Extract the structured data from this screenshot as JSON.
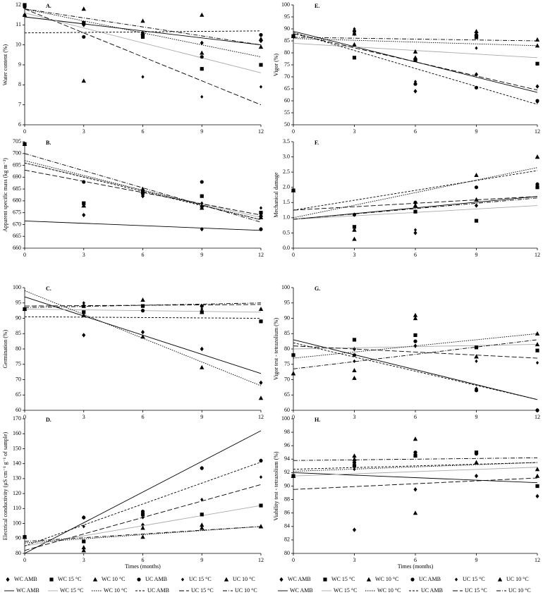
{
  "chart_data": [
    {
      "type": "scatter",
      "title": "A.",
      "ylabel": "Water content (%)",
      "x": [
        0,
        3,
        6,
        9,
        12
      ],
      "xlim": [
        0,
        12
      ],
      "xticks": [
        0,
        3,
        6,
        9,
        12
      ],
      "ylim": [
        6,
        12
      ],
      "yticks": [
        6,
        7,
        8,
        9,
        10,
        11,
        12
      ],
      "color": "#000000",
      "series": [
        {
          "name": "WC AMB",
          "values": [
            11.5,
            11.0,
            10.6,
            10.1,
            10.2
          ],
          "trend": [
            11.4,
            10.0
          ]
        },
        {
          "name": "WC 15 °C",
          "values": [
            12.0,
            11.1,
            10.4,
            8.8,
            9.0
          ],
          "trend": [
            11.6,
            8.6
          ]
        },
        {
          "name": "WC 10 °C",
          "values": [
            11.5,
            11.8,
            11.2,
            11.5,
            9.9
          ],
          "trend": [
            11.8,
            9.4
          ]
        },
        {
          "name": "UC AMB",
          "values": [
            11.9,
            10.4,
            10.5,
            9.4,
            10.5
          ],
          "trend": [
            10.6,
            10.7
          ]
        },
        {
          "name": "UC 15 °C",
          "values": [
            11.9,
            11.0,
            8.4,
            7.4,
            7.9
          ],
          "trend": [
            11.8,
            7.0
          ]
        },
        {
          "name": "UC 10 °C",
          "values": [
            11.5,
            8.2,
            10.6,
            9.6,
            10.3
          ],
          "trend": [
            11.8,
            10.0
          ]
        }
      ]
    },
    {
      "type": "scatter",
      "title": "B.",
      "ylabel": "Apparent specific mass (kg m⁻³)",
      "x": [
        0,
        3,
        6,
        9,
        12
      ],
      "xlim": [
        0,
        12
      ],
      "xticks": [
        0,
        3,
        6,
        9,
        12
      ],
      "ylim": [
        660,
        705
      ],
      "yticks": [
        660,
        665,
        670,
        675,
        680,
        685,
        690,
        695,
        700,
        705
      ],
      "color": "#000000",
      "series": [
        {
          "name": "WC AMB",
          "values": [
            704,
            674,
            682,
            668,
            668
          ],
          "trend": [
            671.5,
            667.5
          ]
        },
        {
          "name": "WC 15 °C",
          "values": [
            704,
            679,
            684,
            682,
            675
          ],
          "trend": [
            696,
            673
          ]
        },
        {
          "name": "WC 10 °C",
          "values": [
            704,
            678,
            685,
            678,
            674
          ],
          "trend": [
            697,
            672
          ]
        },
        {
          "name": "UC AMB",
          "values": [
            704,
            688,
            683,
            688,
            668
          ],
          "trend": [
            696,
            672
          ]
        },
        {
          "name": "UC 15 °C",
          "values": [
            704,
            679,
            682,
            679,
            677
          ],
          "trend": [
            693,
            674
          ]
        },
        {
          "name": "UC 10 °C",
          "values": [
            704,
            678,
            684,
            677,
            673
          ],
          "trend": [
            700,
            671
          ]
        }
      ]
    },
    {
      "type": "scatter",
      "title": "C.",
      "ylabel": "Germination (%)",
      "x": [
        0,
        3,
        6,
        9,
        12
      ],
      "xlim": [
        0,
        12
      ],
      "xticks": [
        0,
        3,
        6,
        9,
        12
      ],
      "ylim": [
        60,
        100
      ],
      "yticks": [
        60,
        65,
        70,
        75,
        80,
        85,
        90,
        95,
        100
      ],
      "color": "#000000",
      "series": [
        {
          "name": "WC AMB",
          "values": [
            93,
            84.5,
            85.5,
            80,
            69
          ],
          "trend": [
            97,
            72
          ]
        },
        {
          "name": "WC 15 °C",
          "values": [
            93,
            92,
            94,
            92,
            89
          ],
          "trend": [
            93,
            92
          ]
        },
        {
          "name": "WC 10 °C",
          "values": [
            93,
            91,
            84,
            74,
            64
          ],
          "trend": [
            99,
            68
          ]
        },
        {
          "name": "UC AMB",
          "values": [
            93,
            94,
            92.5,
            94,
            89
          ],
          "trend": [
            90.5,
            90
          ]
        },
        {
          "name": "UC 15 °C",
          "values": [
            93,
            95,
            94,
            93,
            93
          ],
          "trend": [
            94,
            94.5
          ]
        },
        {
          "name": "UC 10 °C",
          "values": [
            93,
            94,
            96,
            92,
            93
          ],
          "trend": [
            93.5,
            95
          ]
        }
      ]
    },
    {
      "type": "scatter",
      "title": "D.",
      "ylabel": "Electrical conductivity (µS cm⁻¹ g⁻¹ of sample)",
      "xlabel": "Times (months)",
      "x": [
        0,
        3,
        6,
        9,
        12
      ],
      "xlim": [
        0,
        12
      ],
      "xticks": [
        0,
        3,
        6,
        9,
        12
      ],
      "ylim": [
        80,
        170
      ],
      "yticks": [
        80,
        90,
        100,
        110,
        120,
        130,
        140,
        150,
        160,
        170
      ],
      "color": "#000000",
      "series": [
        {
          "name": "WC AMB",
          "values": [
            91,
            104,
            99,
            137,
            142
          ],
          "trend": [
            80,
            162
          ]
        },
        {
          "name": "WC 15 °C",
          "values": [
            91,
            88,
            106,
            106,
            112
          ],
          "trend": [
            85,
            112
          ]
        },
        {
          "name": "WC 10 °C",
          "values": [
            91,
            84,
            91,
            97,
            98
          ],
          "trend": [
            87,
            98
          ]
        },
        {
          "name": "UC AMB",
          "values": [
            91,
            104,
            108,
            137,
            142
          ],
          "trend": [
            85,
            141
          ]
        },
        {
          "name": "UC 15 °C",
          "values": [
            91,
            98,
            104,
            116,
            131
          ],
          "trend": [
            82,
            126
          ]
        },
        {
          "name": "UC 10 °C",
          "values": [
            91,
            82,
            97,
            99,
            98
          ],
          "trend": [
            88,
            98
          ]
        }
      ]
    },
    {
      "type": "scatter",
      "title": "E.",
      "ylabel": "Vigor (%)",
      "x": [
        0,
        3,
        6,
        9,
        12
      ],
      "xlim": [
        0,
        12
      ],
      "xticks": [
        0,
        3,
        6,
        9,
        12
      ],
      "ylim": [
        50,
        100
      ],
      "yticks": [
        50,
        55,
        60,
        65,
        70,
        75,
        80,
        85,
        90,
        95,
        100
      ],
      "color": "#000000",
      "series": [
        {
          "name": "WC AMB",
          "values": [
            87,
            88,
            64,
            71,
            66
          ],
          "trend": [
            89,
            63.5
          ]
        },
        {
          "name": "WC 15 °C",
          "values": [
            87,
            78,
            77,
            86.5,
            75.5
          ],
          "trend": [
            84,
            78
          ]
        },
        {
          "name": "WC 10 °C",
          "values": [
            87,
            83.5,
            80.5,
            89,
            83
          ],
          "trend": [
            86,
            83
          ]
        },
        {
          "name": "UC AMB",
          "values": [
            87,
            89,
            67,
            65.5,
            60
          ],
          "trend": [
            88.5,
            58.5
          ]
        },
        {
          "name": "UC 15 °C",
          "values": [
            87,
            90,
            68,
            82,
            59.5
          ],
          "trend": [
            88,
            64.5
          ]
        },
        {
          "name": "UC 10 °C",
          "values": [
            87,
            88,
            78,
            88,
            85.5
          ],
          "trend": [
            86.5,
            85
          ]
        }
      ]
    },
    {
      "type": "scatter",
      "title": "F.",
      "ylabel": "Mechanical damage",
      "x": [
        0,
        3,
        6,
        9,
        12
      ],
      "xlim": [
        0,
        12
      ],
      "xticks": [
        0,
        3,
        6,
        9,
        12
      ],
      "ylim": [
        0,
        3.5
      ],
      "yticks": [
        {
          "value": 0,
          "label": "0.0"
        },
        0.5,
        {
          "value": 1,
          "label": "1.0"
        },
        1.5,
        {
          "value": 2,
          "label": "2.0"
        },
        2.5,
        {
          "value": 3,
          "label": "3.0"
        },
        3.5
      ],
      "color": "#000000",
      "series": [
        {
          "name": "WC AMB",
          "values": [
            1.9,
            1.1,
            0.5,
            1.4,
            2.1
          ],
          "trend": [
            0.95,
            1.7
          ]
        },
        {
          "name": "WC 15 °C",
          "values": [
            1.9,
            0.7,
            1.2,
            0.9,
            2.0
          ],
          "trend": [
            0.95,
            1.4
          ]
        },
        {
          "name": "WC 10 °C",
          "values": [
            1.9,
            0.3,
            1.4,
            2.4,
            3.0
          ],
          "trend": [
            1.0,
            2.65
          ]
        },
        {
          "name": "UC AMB",
          "values": [
            1.9,
            1.1,
            1.5,
            2.0,
            2.1
          ],
          "trend": [
            1.25,
            2.55
          ]
        },
        {
          "name": "UC 15 °C",
          "values": [
            1.9,
            0.6,
            0.6,
            1.4,
            2.1
          ],
          "trend": [
            1.25,
            1.7
          ]
        },
        {
          "name": "UC 10 °C",
          "values": [
            1.9,
            0.6,
            1.4,
            1.6,
            3.0
          ],
          "trend": [
            0.95,
            1.65
          ]
        }
      ]
    },
    {
      "type": "scatter",
      "title": "G.",
      "ylabel": "Vigor test - tetrazolium (%)",
      "x": [
        0,
        3,
        6,
        9,
        12
      ],
      "xlim": [
        0,
        12
      ],
      "xticks": [
        0,
        3,
        6,
        9,
        12
      ],
      "ylim": [
        60,
        100
      ],
      "yticks": [
        60,
        65,
        70,
        75,
        80,
        85,
        90,
        95,
        100
      ],
      "color": "#000000",
      "series": [
        {
          "name": "WC AMB",
          "values": [
            78,
            80,
            81,
            67,
            60
          ],
          "trend": [
            83,
            63.5
          ]
        },
        {
          "name": "WC 15 °C",
          "values": [
            78,
            83,
            84.5,
            80.5,
            79.5
          ],
          "trend": [
            80,
            81.5
          ]
        },
        {
          "name": "WC 10 °C",
          "values": [
            72,
            73,
            90,
            77.5,
            85
          ],
          "trend": [
            77,
            85
          ]
        },
        {
          "name": "UC AMB",
          "values": [
            78,
            78,
            82.5,
            66.5,
            60
          ],
          "trend": [
            82,
            63.5
          ]
        },
        {
          "name": "UC 15 °C",
          "values": [
            78,
            76,
            81,
            76,
            75.5
          ],
          "trend": [
            81,
            77
          ]
        },
        {
          "name": "UC 10 °C",
          "values": [
            72,
            70.5,
            91,
            77.5,
            81.5
          ],
          "trend": [
            73.5,
            83
          ]
        }
      ]
    },
    {
      "type": "scatter",
      "title": "H.",
      "ylabel": "Viability test - tetrazolium (%)",
      "xlabel": "Times (months)",
      "x": [
        0,
        3,
        6,
        9,
        12
      ],
      "xlim": [
        0,
        12
      ],
      "xticks": [
        0,
        3,
        6,
        9,
        12
      ],
      "ylim": [
        80,
        100
      ],
      "yticks": [
        80,
        82,
        84,
        86,
        88,
        90,
        92,
        94,
        96,
        98,
        100
      ],
      "color": "#000000",
      "series": [
        {
          "name": "WC AMB",
          "values": [
            91.5,
            83.5,
            89.5,
            91.5,
            88.5
          ],
          "trend": [
            92,
            90.5
          ]
        },
        {
          "name": "WC 15 °C",
          "values": [
            91.5,
            93,
            94.5,
            95,
            90
          ],
          "trend": [
            91.5,
            92.8
          ]
        },
        {
          "name": "WC 10 °C",
          "values": [
            91.5,
            94.5,
            97,
            93.5,
            92.5
          ],
          "trend": [
            92.2,
            93.5
          ]
        },
        {
          "name": "UC AMB",
          "values": [
            91.5,
            93.5,
            95,
            94.8,
            90
          ],
          "trend": [
            92.5,
            93.5
          ]
        },
        {
          "name": "UC 15 °C",
          "values": [
            91.5,
            92.5,
            89.5,
            91.5,
            88.5
          ],
          "trend": [
            89.5,
            91.2
          ]
        },
        {
          "name": "UC 10 °C",
          "values": [
            91.5,
            94,
            86,
            93.5,
            91.5
          ],
          "trend": [
            93.8,
            94.2
          ]
        }
      ]
    }
  ]
}
